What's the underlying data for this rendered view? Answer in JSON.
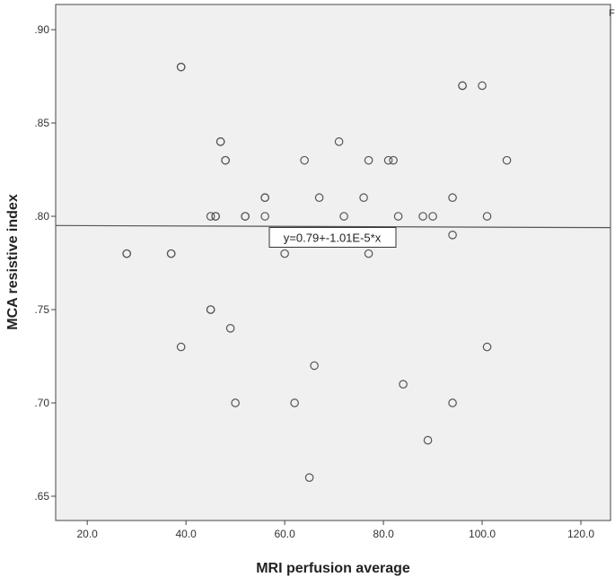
{
  "chart_data": {
    "type": "scatter",
    "title": "",
    "xlabel": "MRI perfusion average",
    "ylabel": "MCA resistive index",
    "xlim": [
      13.6,
      126
    ],
    "ylim": [
      0.637,
      0.9135
    ],
    "x_ticks": [
      20,
      40,
      60,
      80,
      100,
      120
    ],
    "x_tick_labels": [
      "20.0",
      "40.0",
      "60.0",
      "80.0",
      "100.0",
      "120.0"
    ],
    "y_ticks": [
      0.9,
      0.85,
      0.8,
      0.75,
      0.7,
      0.65
    ],
    "y_tick_labels": [
      ".90",
      ".85",
      ".80",
      ".75",
      ".70",
      ".65"
    ],
    "grid": false,
    "background_color": "#f0f0f0",
    "marker": "open-circle",
    "points": [
      [
        39,
        0.88
      ],
      [
        39,
        0.88
      ],
      [
        96,
        0.87
      ],
      [
        96,
        0.87
      ],
      [
        100,
        0.87
      ],
      [
        47,
        0.84
      ],
      [
        47,
        0.84
      ],
      [
        71,
        0.84
      ],
      [
        48,
        0.83
      ],
      [
        48,
        0.83
      ],
      [
        64,
        0.83
      ],
      [
        77,
        0.83
      ],
      [
        81,
        0.83
      ],
      [
        82,
        0.83
      ],
      [
        105,
        0.83
      ],
      [
        56,
        0.81
      ],
      [
        56,
        0.81
      ],
      [
        67,
        0.81
      ],
      [
        76,
        0.81
      ],
      [
        94,
        0.81
      ],
      [
        45,
        0.8
      ],
      [
        46,
        0.8
      ],
      [
        46,
        0.8
      ],
      [
        52,
        0.8
      ],
      [
        52,
        0.8
      ],
      [
        56,
        0.8
      ],
      [
        72,
        0.8
      ],
      [
        83,
        0.8
      ],
      [
        88,
        0.8
      ],
      [
        90,
        0.8
      ],
      [
        101,
        0.8
      ],
      [
        94,
        0.79
      ],
      [
        28,
        0.78
      ],
      [
        28,
        0.78
      ],
      [
        37,
        0.78
      ],
      [
        37,
        0.78
      ],
      [
        60,
        0.78
      ],
      [
        77,
        0.78
      ],
      [
        45,
        0.75
      ],
      [
        45,
        0.75
      ],
      [
        49,
        0.74
      ],
      [
        39,
        0.73
      ],
      [
        101,
        0.73
      ],
      [
        66,
        0.72
      ],
      [
        84,
        0.71
      ],
      [
        50,
        0.7
      ],
      [
        62,
        0.7
      ],
      [
        94,
        0.7
      ],
      [
        89,
        0.68
      ],
      [
        65,
        0.66
      ]
    ],
    "fit_line": {
      "intercept": 0.7952,
      "slope": -1.01e-05,
      "label": "y=0.79+-1.01E-5*x"
    },
    "corner_fragment": "F"
  }
}
